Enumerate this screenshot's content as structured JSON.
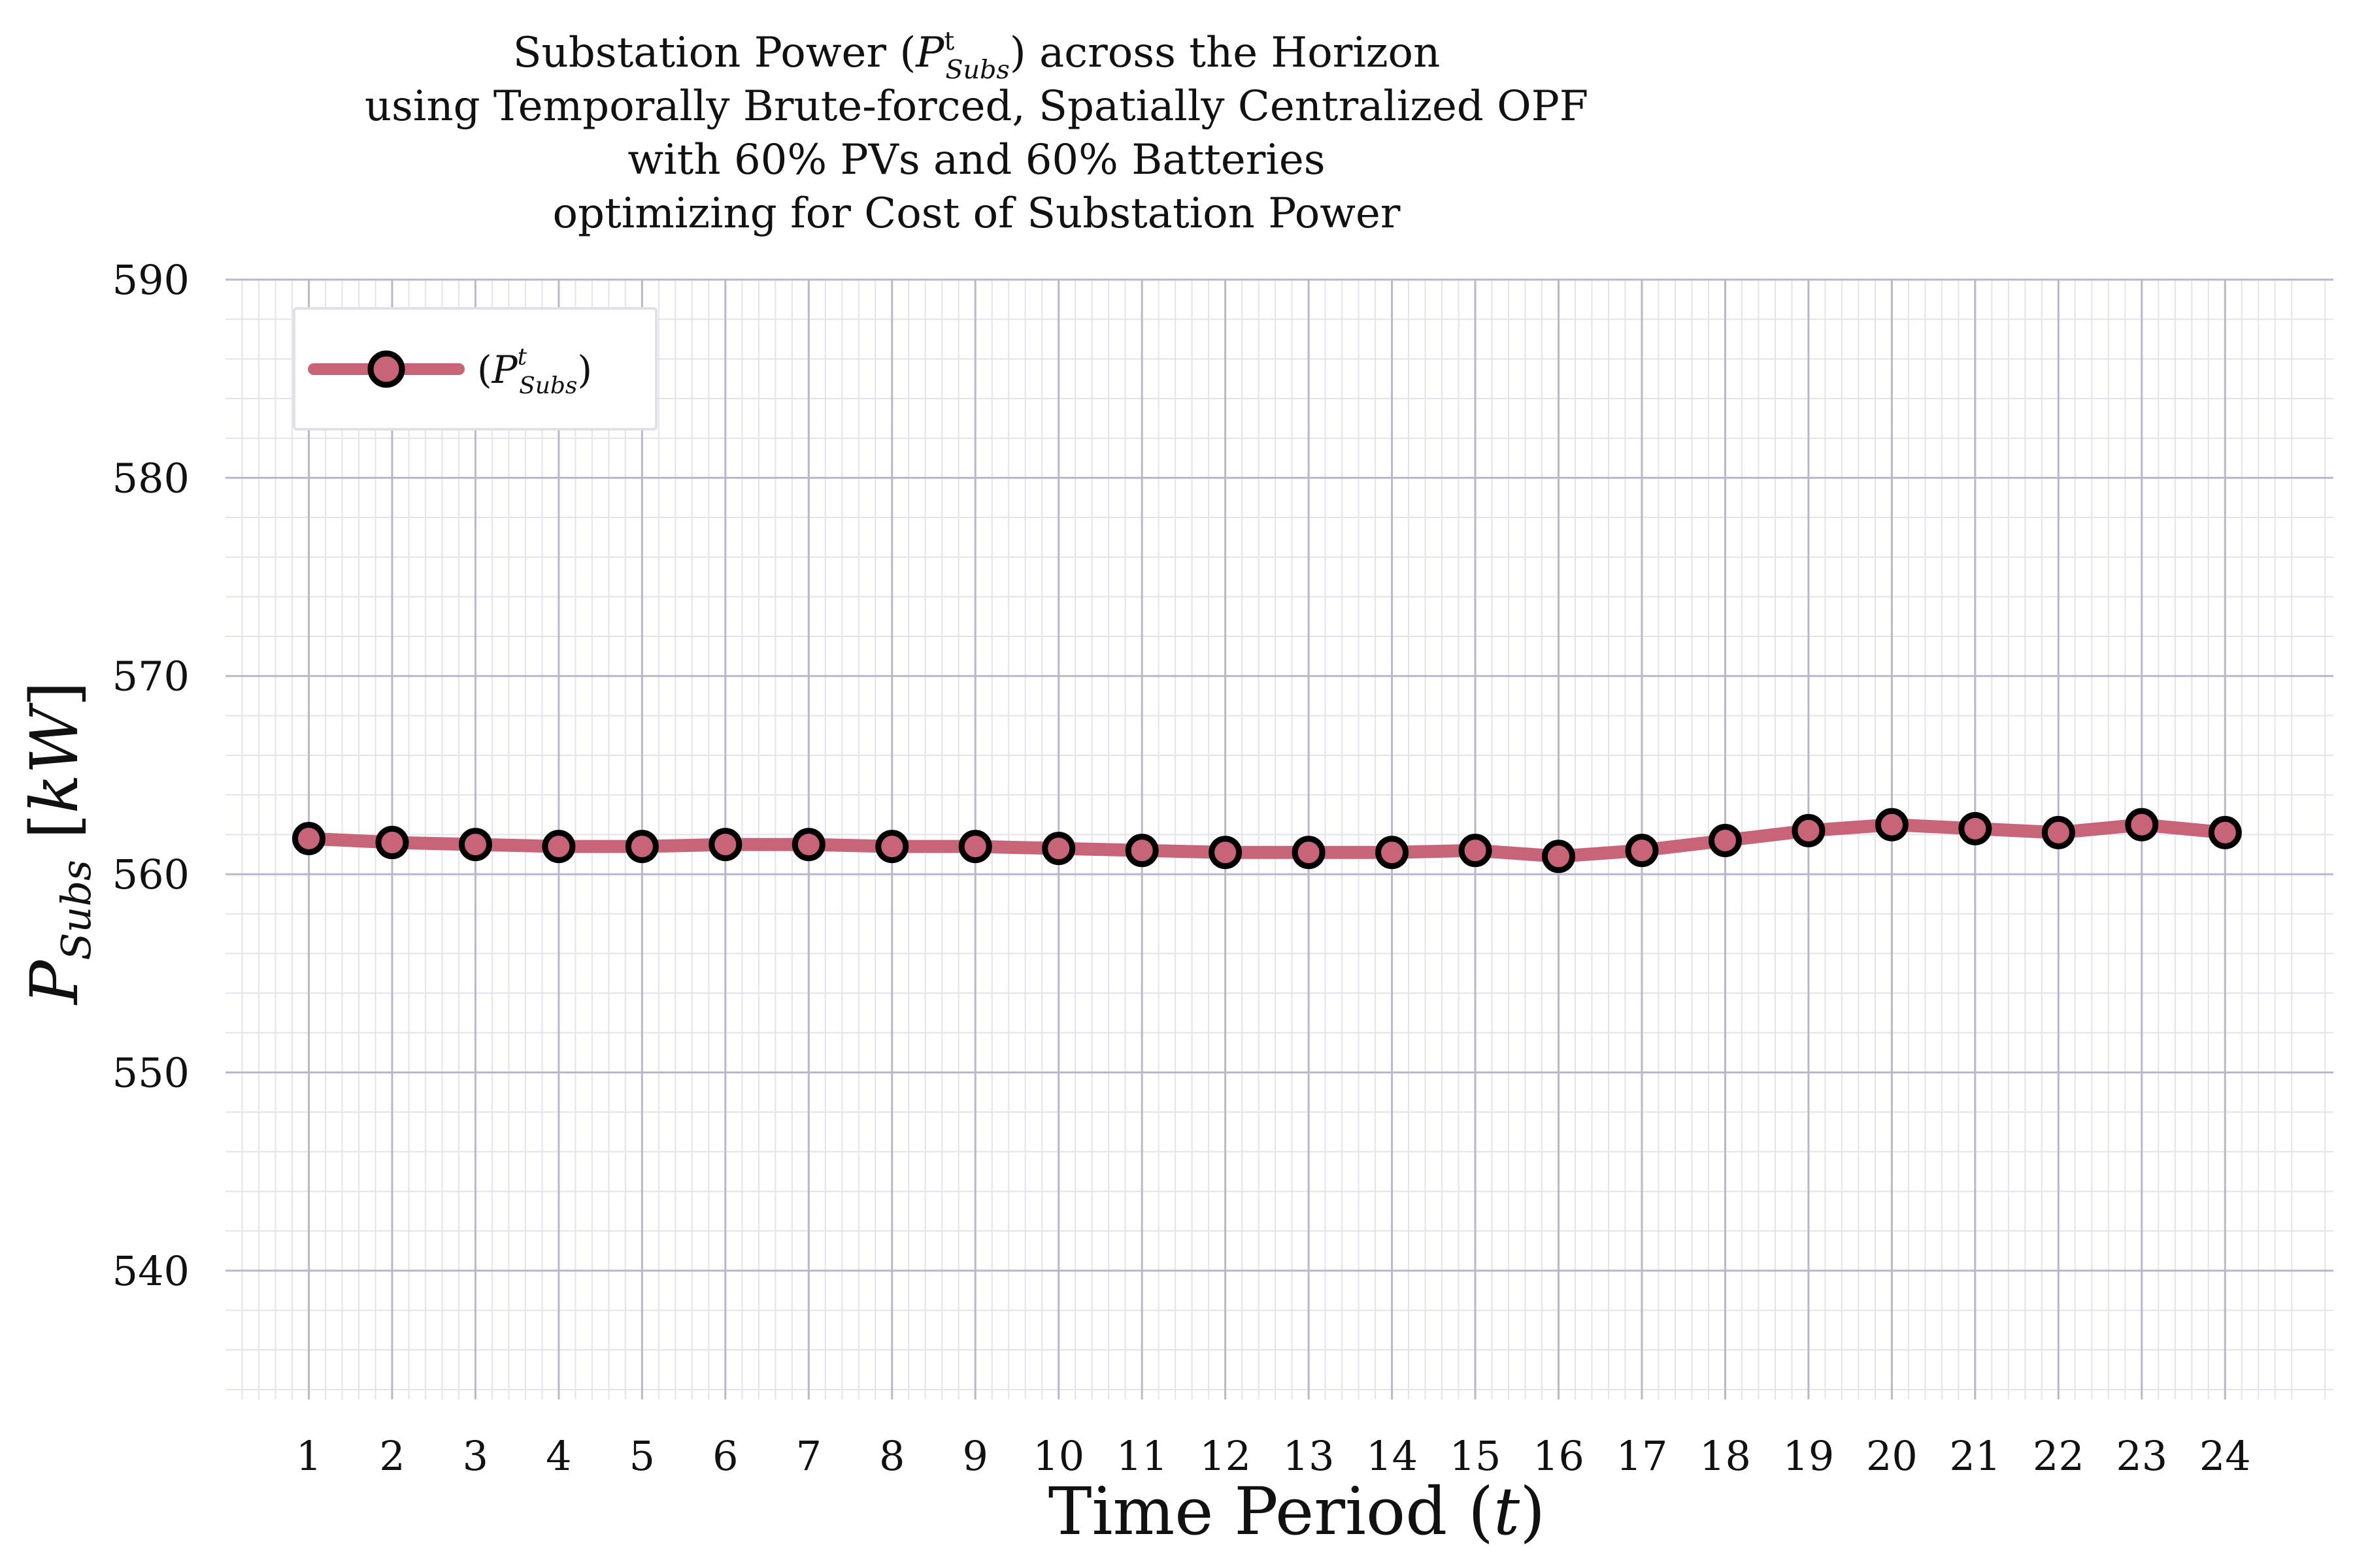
{
  "chart_data": {
    "type": "line",
    "title_lines": [
      "Substation Power ($P^t_{Subs}$) across the Horizon",
      "using Temporally Brute-forced, Spatially Centralized OPF",
      "with 60% PVs and 60% Batteries",
      "optimizing for Cost of Substation Power"
    ],
    "xlabel": "Time Period (t)",
    "ylabel": "P_Subs [kW]",
    "x": [
      1,
      2,
      3,
      4,
      5,
      6,
      7,
      8,
      9,
      10,
      11,
      12,
      13,
      14,
      15,
      16,
      17,
      18,
      19,
      20,
      21,
      22,
      23,
      24
    ],
    "x_ticks": [
      "1",
      "2",
      "3",
      "4",
      "5",
      "6",
      "7",
      "8",
      "9",
      "10",
      "11",
      "12",
      "13",
      "14",
      "15",
      "16",
      "17",
      "18",
      "19",
      "20",
      "21",
      "22",
      "23",
      "24"
    ],
    "y_ticks": [
      "540",
      "550",
      "560",
      "570",
      "580",
      "590"
    ],
    "ylim": [
      533.5,
      590
    ],
    "xlim": [
      0,
      25.3
    ],
    "grid": true,
    "legend_position": "top-left",
    "series": [
      {
        "name": "(P^t_Subs)",
        "color": "#c86478",
        "marker_face": "#c86478",
        "marker_edge": "#000000",
        "values": [
          561.8,
          561.6,
          561.5,
          561.4,
          561.4,
          561.5,
          561.5,
          561.4,
          561.4,
          561.3,
          561.2,
          561.1,
          561.1,
          561.1,
          561.2,
          560.9,
          561.2,
          561.7,
          562.2,
          562.5,
          562.3,
          562.1,
          562.5,
          562.1
        ]
      }
    ]
  }
}
